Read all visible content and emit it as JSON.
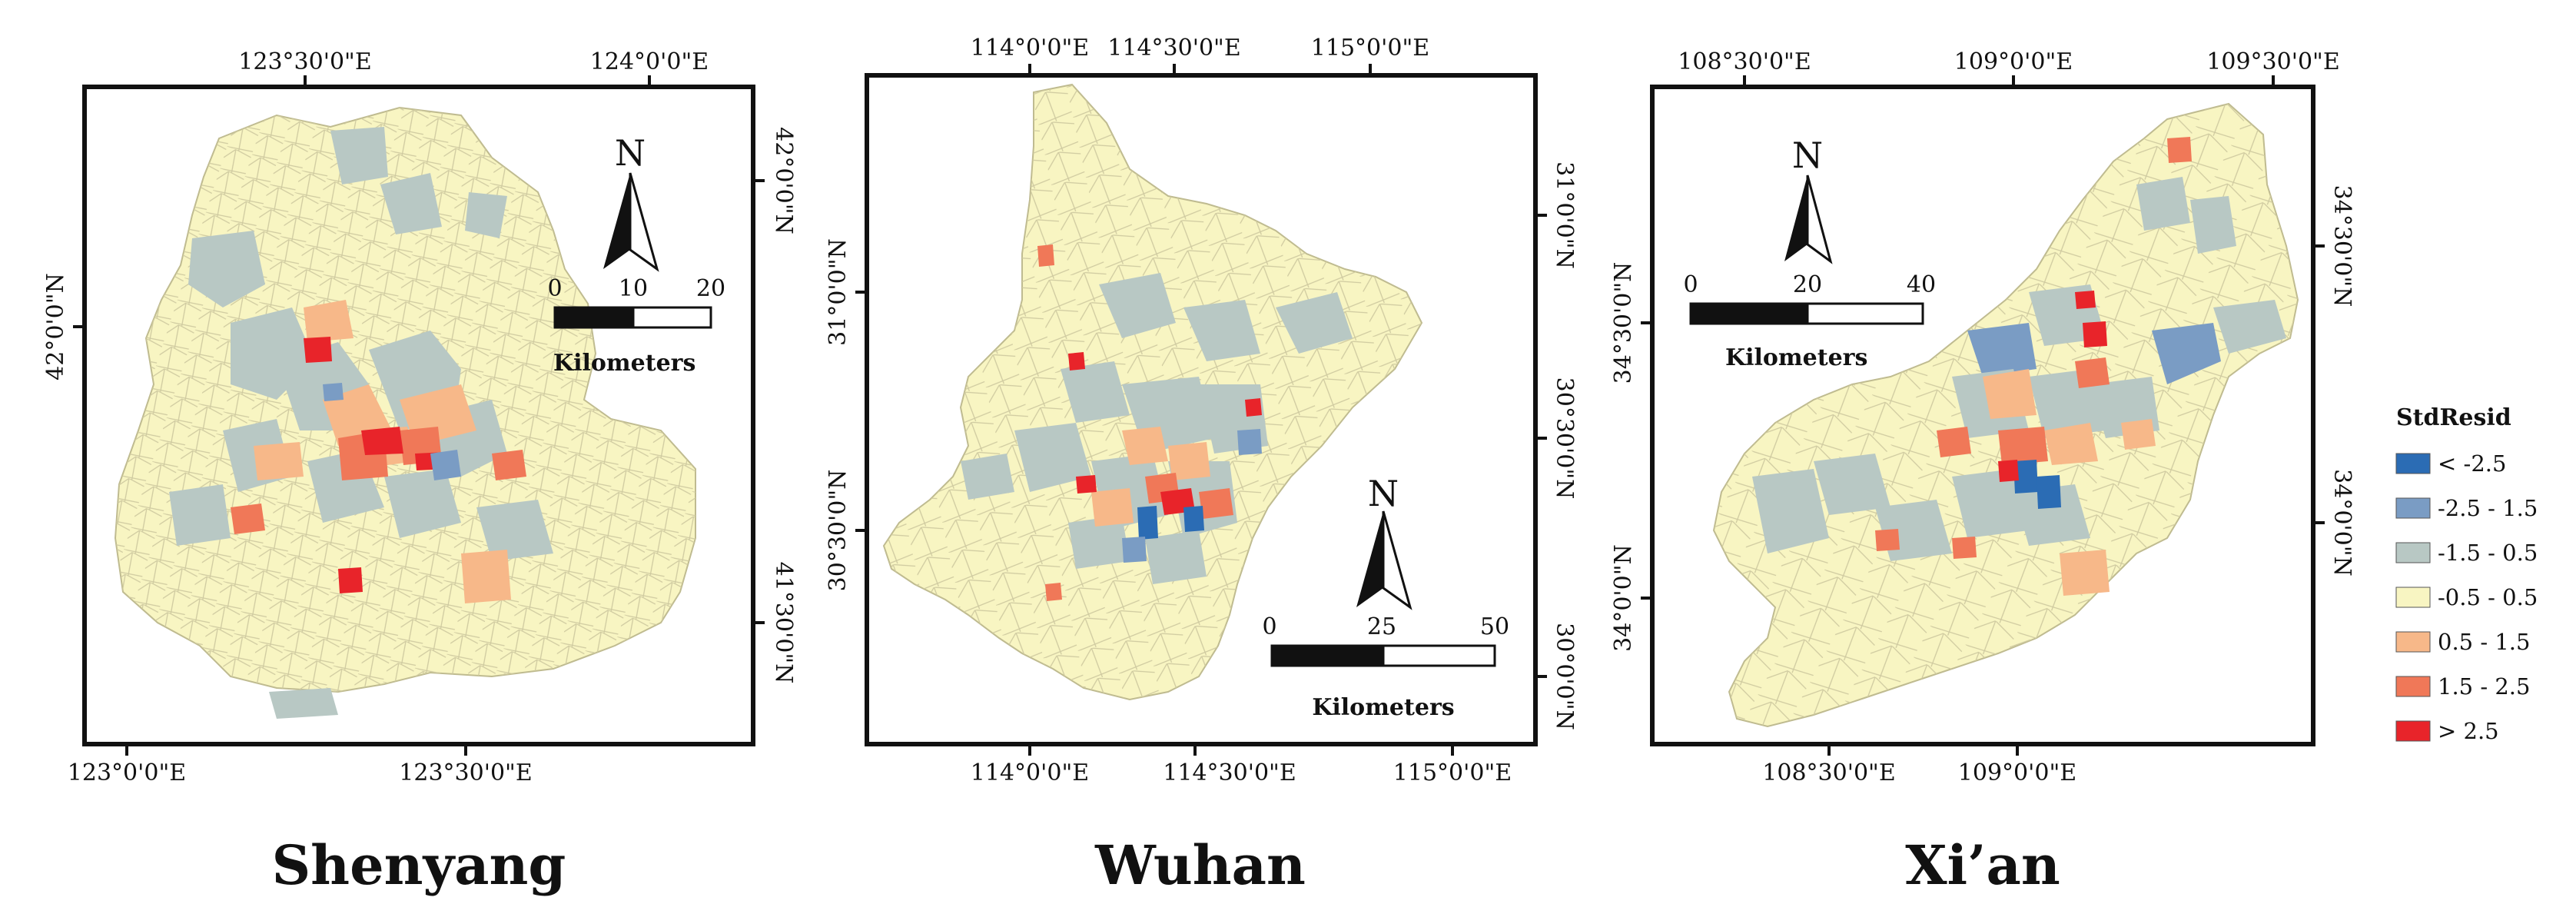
{
  "maps": [
    {
      "name": "Shenyang",
      "top_ticks": [
        "123°30'0\"E",
        "124°0'0\"E"
      ],
      "bottom_ticks": [
        "123°0'0\"E",
        "123°30'0\"E"
      ],
      "left_ticks": [
        "42°0'0\"N"
      ],
      "right_ticks": [
        "42°0'0\"N",
        "41°30'0\"N"
      ],
      "north_label": "N",
      "scale": {
        "ticks": [
          "0",
          "10",
          "20"
        ],
        "unit": "Kilometers"
      }
    },
    {
      "name": "Wuhan",
      "top_ticks": [
        "114°0'0\"E",
        "114°30'0\"E",
        "115°0'0\"E"
      ],
      "bottom_ticks": [
        "114°0'0\"E",
        "114°30'0\"E",
        "115°0'0\"E"
      ],
      "left_ticks": [
        "31°0'0\"N",
        "30°30'0\"N"
      ],
      "right_ticks": [
        "31°0'0\"N",
        "30°30'0\"N",
        "30°0'0\"N"
      ],
      "north_label": "N",
      "scale": {
        "ticks": [
          "0",
          "25",
          "50"
        ],
        "unit": "Kilometers"
      }
    },
    {
      "name": "Xi’an",
      "top_ticks": [
        "108°30'0\"E",
        "109°0'0\"E",
        "109°30'0\"E"
      ],
      "bottom_ticks": [
        "108°30'0\"E",
        "109°0'0\"E"
      ],
      "left_ticks": [
        "34°30'0\"N",
        "34°0'0\"N"
      ],
      "right_ticks": [
        "34°30'0\"N",
        "34°0'0\"N"
      ],
      "north_label": "N",
      "scale": {
        "ticks": [
          "0",
          "20",
          "40"
        ],
        "unit": "Kilometers"
      }
    }
  ],
  "legend": {
    "title": "StdResid",
    "classes": [
      {
        "label": "< -2.5",
        "color": "#2b6cb4"
      },
      {
        "label": "-2.5 - 1.5",
        "color": "#7a9cc4"
      },
      {
        "label": "-1.5 - 0.5",
        "color": "#b8c8c4"
      },
      {
        "label": "-0.5 - 0.5",
        "color": "#f8f5c2"
      },
      {
        "label": "0.5 - 1.5",
        "color": "#f7b889"
      },
      {
        "label": "1.5 - 2.5",
        "color": "#f07858"
      },
      {
        "label": "> 2.5",
        "color": "#e8242a"
      }
    ]
  },
  "colors": {
    "base_fill": "#f8f5c2",
    "boundary": "#c9c59c",
    "frame": "#111111"
  }
}
